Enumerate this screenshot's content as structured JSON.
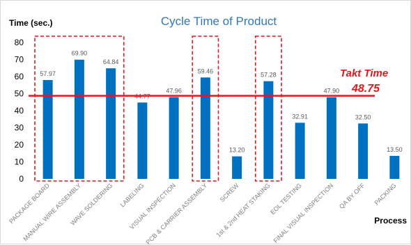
{
  "chart_data": {
    "type": "bar",
    "title": "Cycle Time of Product",
    "ylabel": "Time (sec.)",
    "xlabel": "Process",
    "ylim": [
      0,
      80
    ],
    "yticks": [
      0,
      10,
      20,
      30,
      40,
      50,
      60,
      70,
      80
    ],
    "grid": false,
    "categories": [
      "PACKAGE BOARD",
      "MANUAL WIRE ASSEMBLY",
      "WAVE SOLDERING",
      "LABELING",
      "VISUAL INSPECTION",
      "PCB & CARRIER ASSEMBLY",
      "SCREW",
      "1st & 2nd HEAT STAKING",
      "EOL TESTING",
      "FINAL VISUAL INSPECTION",
      "QA BY OFF",
      "PACKING"
    ],
    "values": [
      57.97,
      69.9,
      64.84,
      44.77,
      47.96,
      59.46,
      13.2,
      57.28,
      32.91,
      47.9,
      32.5,
      13.5
    ],
    "value_labels": [
      "57.97",
      "69.90",
      "64.84",
      "44.77",
      "47.96",
      "59.46",
      "13.20",
      "57.28",
      "32.91",
      "47.90",
      "32.50",
      "13.50"
    ],
    "bar_color": "#0070c0",
    "reference_line": {
      "label": "Takt Time",
      "value_label": "48.75",
      "value": 48.75,
      "color": "#e8161b"
    },
    "highlight_groups": [
      {
        "categories": [
          "PACKAGE BOARD",
          "MANUAL WIRE ASSEMBLY",
          "WAVE SOLDERING"
        ],
        "color": "#e8161b",
        "style": "dashed"
      },
      {
        "categories": [
          "PCB & CARRIER ASSEMBLY"
        ],
        "color": "#e8161b",
        "style": "dashed"
      },
      {
        "categories": [
          "1st & 2nd HEAT STAKING"
        ],
        "color": "#e8161b",
        "style": "dashed"
      }
    ]
  }
}
